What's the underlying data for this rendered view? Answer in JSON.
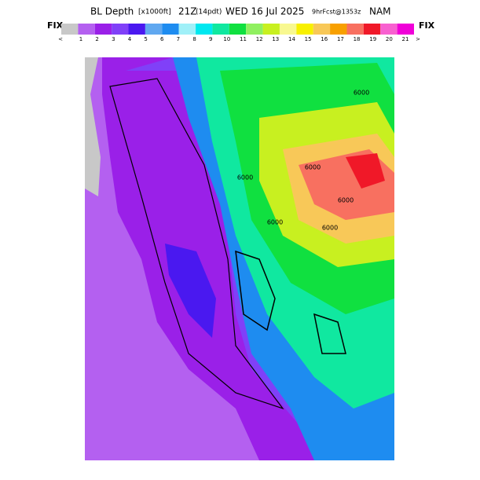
{
  "header": {
    "title": "BL Depth",
    "units": "[x1000ft]",
    "valid": "21Z",
    "local": "(14pdt)",
    "date": "WED 16 Jul 2025",
    "forecast": "9hrFcst@1353z",
    "model": "NAM"
  },
  "legend": {
    "left": "FIX",
    "right": "FIX",
    "labels": [
      "<",
      "1",
      "2",
      "3",
      "4",
      "5",
      "6",
      "7",
      "8",
      "9",
      "10",
      "11",
      "12",
      "13",
      "14",
      "15",
      "16",
      "17",
      "18",
      "19",
      "20",
      "21",
      ">"
    ],
    "colors": [
      "#c8c8c8",
      "#b460f0",
      "#9a20e8",
      "#8040f8",
      "#4a18f0",
      "#60a8f0",
      "#1e8cf0",
      "#a0f0f8",
      "#00e8f0",
      "#10e8a0",
      "#10e040",
      "#90f060",
      "#c8f020",
      "#f8f890",
      "#f8f000",
      "#f8c858",
      "#f8a000",
      "#f87060",
      "#f01828",
      "#f860d0",
      "#f000d8"
    ]
  },
  "map": {
    "contour_labels": [
      "6000",
      "6000",
      "6000",
      "6000",
      "6000",
      "6000"
    ]
  }
}
